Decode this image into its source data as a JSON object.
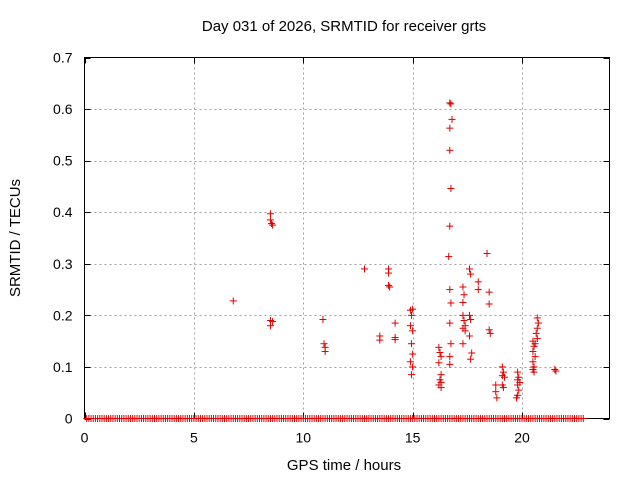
{
  "chart_data": {
    "type": "scatter",
    "title": "Day 031 of 2026, SRMTID for receiver grts",
    "xlabel": "GPS time / hours",
    "ylabel": "SRMTID / TECUs",
    "xlim": [
      0,
      24
    ],
    "ylim": [
      0,
      0.7
    ],
    "xticks": [
      0,
      5,
      10,
      15,
      20
    ],
    "yticks": [
      0,
      0.1,
      0.2,
      0.3,
      0.4,
      0.5,
      0.6,
      0.7
    ],
    "ytick_labels": [
      "0",
      "0.1",
      "0.2",
      "0.3",
      "0.4",
      "0.5",
      "0.6",
      "0.7"
    ],
    "grid": true,
    "marker": "+",
    "color": "#e00000",
    "zero_baseline": {
      "x_start": 0.1,
      "x_end": 22.8,
      "step": 0.1,
      "y": 0
    },
    "points": [
      [
        6.8,
        0.228
      ],
      [
        8.5,
        0.397
      ],
      [
        8.5,
        0.385
      ],
      [
        8.55,
        0.378
      ],
      [
        8.6,
        0.375
      ],
      [
        8.5,
        0.19
      ],
      [
        8.5,
        0.18
      ],
      [
        8.6,
        0.188
      ],
      [
        10.9,
        0.192
      ],
      [
        10.95,
        0.145
      ],
      [
        11.0,
        0.138
      ],
      [
        11.0,
        0.13
      ],
      [
        12.8,
        0.29
      ],
      [
        13.5,
        0.16
      ],
      [
        13.5,
        0.152
      ],
      [
        13.9,
        0.29
      ],
      [
        13.9,
        0.282
      ],
      [
        13.9,
        0.258
      ],
      [
        13.95,
        0.255
      ],
      [
        14.2,
        0.185
      ],
      [
        14.2,
        0.157
      ],
      [
        14.2,
        0.153
      ],
      [
        14.9,
        0.21
      ],
      [
        15.0,
        0.212
      ],
      [
        14.95,
        0.2
      ],
      [
        14.9,
        0.18
      ],
      [
        15.0,
        0.17
      ],
      [
        14.95,
        0.145
      ],
      [
        15.0,
        0.125
      ],
      [
        14.9,
        0.11
      ],
      [
        15.0,
        0.1
      ],
      [
        14.95,
        0.085
      ],
      [
        16.2,
        0.138
      ],
      [
        16.25,
        0.128
      ],
      [
        16.3,
        0.12
      ],
      [
        16.2,
        0.108
      ],
      [
        16.3,
        0.085
      ],
      [
        16.25,
        0.075
      ],
      [
        16.3,
        0.07
      ],
      [
        16.2,
        0.065
      ],
      [
        16.3,
        0.06
      ],
      [
        16.7,
        0.612
      ],
      [
        16.75,
        0.61
      ],
      [
        16.8,
        0.58
      ],
      [
        16.7,
        0.563
      ],
      [
        16.7,
        0.52
      ],
      [
        16.75,
        0.446
      ],
      [
        16.7,
        0.373
      ],
      [
        16.65,
        0.314
      ],
      [
        16.7,
        0.25
      ],
      [
        16.75,
        0.224
      ],
      [
        16.7,
        0.185
      ],
      [
        16.75,
        0.145
      ],
      [
        16.7,
        0.12
      ],
      [
        16.7,
        0.105
      ],
      [
        17.3,
        0.255
      ],
      [
        17.35,
        0.24
      ],
      [
        17.3,
        0.225
      ],
      [
        17.3,
        0.2
      ],
      [
        17.35,
        0.19
      ],
      [
        17.4,
        0.18
      ],
      [
        17.3,
        0.175
      ],
      [
        17.4,
        0.17
      ],
      [
        17.3,
        0.145
      ],
      [
        17.6,
        0.29
      ],
      [
        17.65,
        0.28
      ],
      [
        17.6,
        0.2
      ],
      [
        17.65,
        0.192
      ],
      [
        17.6,
        0.16
      ],
      [
        17.7,
        0.127
      ],
      [
        17.65,
        0.115
      ],
      [
        18.0,
        0.265
      ],
      [
        18.0,
        0.25
      ],
      [
        18.4,
        0.32
      ],
      [
        18.5,
        0.245
      ],
      [
        18.5,
        0.222
      ],
      [
        18.5,
        0.172
      ],
      [
        18.55,
        0.165
      ],
      [
        18.8,
        0.065
      ],
      [
        18.8,
        0.052
      ],
      [
        18.85,
        0.04
      ],
      [
        19.1,
        0.1
      ],
      [
        19.15,
        0.09
      ],
      [
        19.1,
        0.083
      ],
      [
        19.2,
        0.08
      ],
      [
        19.1,
        0.065
      ],
      [
        19.15,
        0.06
      ],
      [
        19.8,
        0.09
      ],
      [
        19.85,
        0.08
      ],
      [
        19.8,
        0.075
      ],
      [
        19.9,
        0.07
      ],
      [
        19.8,
        0.065
      ],
      [
        19.85,
        0.055
      ],
      [
        19.8,
        0.045
      ],
      [
        19.75,
        0.04
      ],
      [
        20.5,
        0.15
      ],
      [
        20.55,
        0.14
      ],
      [
        20.5,
        0.13
      ],
      [
        20.6,
        0.12
      ],
      [
        20.5,
        0.11
      ],
      [
        20.55,
        0.1
      ],
      [
        20.5,
        0.095
      ],
      [
        20.55,
        0.09
      ],
      [
        20.7,
        0.195
      ],
      [
        20.75,
        0.185
      ],
      [
        20.7,
        0.175
      ],
      [
        20.65,
        0.165
      ],
      [
        20.7,
        0.155
      ],
      [
        20.6,
        0.145
      ],
      [
        21.5,
        0.095
      ],
      [
        21.55,
        0.092
      ]
    ]
  }
}
